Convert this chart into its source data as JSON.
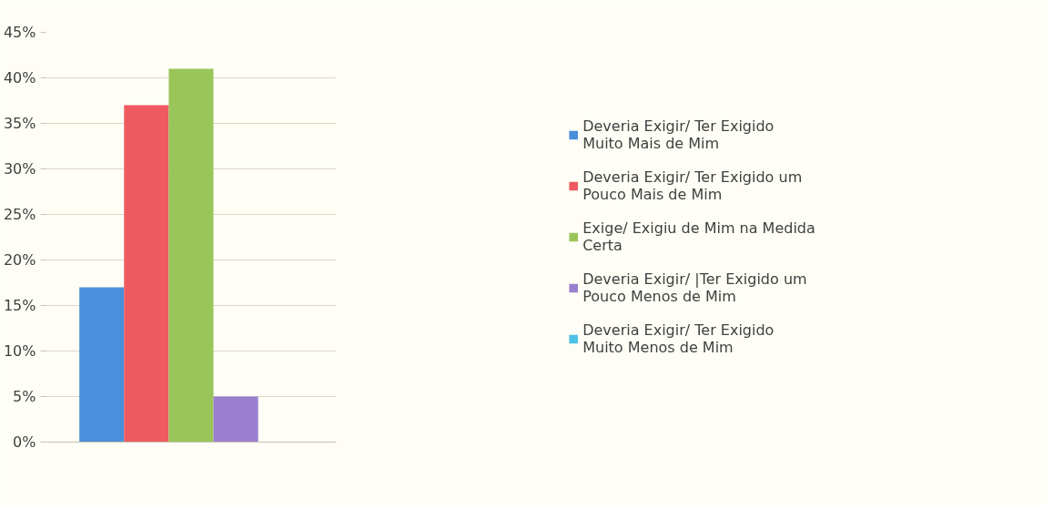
{
  "chart_data": {
    "type": "bar",
    "categories": [
      null
    ],
    "series": [
      {
        "name": "Deveria Exigir/ Ter Exigido Muito Mais de Mim",
        "color": "#4a8fdc",
        "values": [
          17
        ]
      },
      {
        "name": "Deveria Exigir/ Ter Exigido um Pouco Mais de Mim",
        "color": "#ee5a5f",
        "values": [
          37
        ]
      },
      {
        "name": "Exige/ Exigiu de Mim na Medida Certa",
        "color": "#9ac55a",
        "values": [
          41
        ]
      },
      {
        "name": "Deveria Exigir/ |Ter Exigido um Pouco Menos de Mim",
        "color": "#9b7fcf",
        "values": [
          5
        ]
      },
      {
        "name": "Deveria Exigir/ Ter Exigido Muito Menos de Mim",
        "color": "#4fc1e8",
        "values": [
          0
        ]
      }
    ],
    "ylim": [
      0,
      45
    ],
    "yticks": [
      {
        "value": 0,
        "label": "0%"
      },
      {
        "value": 5,
        "label": "5%"
      },
      {
        "value": 10,
        "label": "10%"
      },
      {
        "value": 15,
        "label": "15%"
      },
      {
        "value": 20,
        "label": "20%"
      },
      {
        "value": 25,
        "label": "25%"
      },
      {
        "value": 30,
        "label": "30%"
      },
      {
        "value": 35,
        "label": "35%"
      },
      {
        "value": 40,
        "label": "40%"
      },
      {
        "value": 45,
        "label": "45%"
      }
    ],
    "grid": "y",
    "legend": "right"
  }
}
